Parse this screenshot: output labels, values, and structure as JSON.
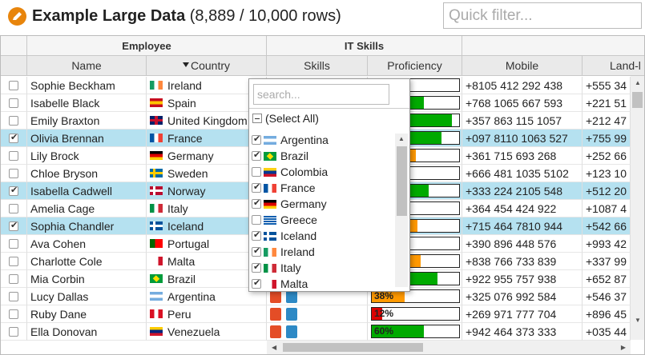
{
  "title": {
    "main": "Example Large Data",
    "count": "(8,889 / 10,000 rows)"
  },
  "quick_filter": {
    "placeholder": "Quick filter..."
  },
  "headers": {
    "groups": {
      "employee": "Employee",
      "it_skills": "IT Skills"
    },
    "columns": {
      "name": "Name",
      "country": "Country",
      "skills": "Skills",
      "proficiency": "Proficiency",
      "mobile": "Mobile",
      "landline": "Land-l"
    }
  },
  "rows": [
    {
      "name": "Sophie Beckham",
      "country": "Ireland",
      "flag": "ireland",
      "checked": false,
      "prof": 20,
      "prof_color": "#dd0000",
      "prof_text": "",
      "mobile": "+8105 412 292 438",
      "land": "+555 34"
    },
    {
      "name": "Isabelle Black",
      "country": "Spain",
      "flag": "spain",
      "checked": false,
      "prof": 60,
      "prof_color": "#00aa00",
      "prof_text": "",
      "mobile": "+768 1065 667 593",
      "land": "+221 51"
    },
    {
      "name": "Emily Braxton",
      "country": "United Kingdom",
      "flag": "uk",
      "checked": false,
      "prof": 92,
      "prof_color": "#00aa00",
      "prof_text": "",
      "mobile": "+357 863 115 1057",
      "land": "+212 47"
    },
    {
      "name": "Olivia Brennan",
      "country": "France",
      "flag": "france",
      "checked": true,
      "prof": 80,
      "prof_color": "#00aa00",
      "prof_text": "",
      "mobile": "+097 8110 1063 527",
      "land": "+755 99"
    },
    {
      "name": "Lily Brock",
      "country": "Germany",
      "flag": "germany",
      "checked": false,
      "prof": 50,
      "prof_color": "#ff9900",
      "prof_text": "",
      "mobile": "+361 715 693 268",
      "land": "+252 66"
    },
    {
      "name": "Chloe Bryson",
      "country": "Sweden",
      "flag": "sweden",
      "checked": false,
      "prof": 0,
      "prof_color": "#00aa00",
      "prof_text": "",
      "mobile": "+666 481 1035 5102",
      "land": "+123 10"
    },
    {
      "name": "Isabella Cadwell",
      "country": "Norway",
      "flag": "norway",
      "checked": true,
      "prof": 65,
      "prof_color": "#00aa00",
      "prof_text": "",
      "mobile": "+333 224 2105 548",
      "land": "+512 20"
    },
    {
      "name": "Amelia Cage",
      "country": "Italy",
      "flag": "italy",
      "checked": false,
      "prof": 0,
      "prof_color": "#00aa00",
      "prof_text": "",
      "mobile": "+364 454 424 922",
      "land": "+1087 4"
    },
    {
      "name": "Sophia Chandler",
      "country": "Iceland",
      "flag": "iceland",
      "checked": true,
      "prof": 52,
      "prof_color": "#ff9900",
      "prof_text": "",
      "mobile": "+715 464 7810 944",
      "land": "+542 66"
    },
    {
      "name": "Ava Cohen",
      "country": "Portugal",
      "flag": "portugal",
      "checked": false,
      "prof": 0,
      "prof_color": "#00aa00",
      "prof_text": "",
      "mobile": "+390 896 448 576",
      "land": "+993 42"
    },
    {
      "name": "Charlotte Cole",
      "country": "Malta",
      "flag": "malta",
      "checked": false,
      "prof": 56,
      "prof_color": "#ff9900",
      "prof_text": "",
      "mobile": "+838 766 733 839",
      "land": "+337 99"
    },
    {
      "name": "Mia Corbin",
      "country": "Brazil",
      "flag": "brazil",
      "checked": false,
      "prof": 75,
      "prof_color": "#00aa00",
      "prof_text": "",
      "mobile": "+922 955 757 938",
      "land": "+652 87"
    },
    {
      "name": "Lucy Dallas",
      "country": "Argentina",
      "flag": "argentina",
      "checked": false,
      "prof": 38,
      "prof_color": "#ff9900",
      "prof_text": "38%",
      "mobile": "+325 076 992 584",
      "land": "+546 37"
    },
    {
      "name": "Ruby Dane",
      "country": "Peru",
      "flag": "peru",
      "checked": false,
      "prof": 12,
      "prof_color": "#dd0000",
      "prof_text": "12%",
      "mobile": "+269 971 777 704",
      "land": "+896 45"
    },
    {
      "name": "Ella Donovan",
      "country": "Venezuela",
      "flag": "venezuela",
      "checked": false,
      "prof": 60,
      "prof_color": "#00aa00",
      "prof_text": "60%",
      "mobile": "+942 464 373 333",
      "land": "+035 44"
    }
  ],
  "filter_popup": {
    "search_placeholder": "search...",
    "select_all": "(Select All)",
    "items": [
      {
        "label": "Argentina",
        "flag": "argentina",
        "checked": true
      },
      {
        "label": "Brazil",
        "flag": "brazil",
        "checked": true
      },
      {
        "label": "Colombia",
        "flag": "colombia",
        "checked": false
      },
      {
        "label": "France",
        "flag": "france",
        "checked": true
      },
      {
        "label": "Germany",
        "flag": "germany",
        "checked": true
      },
      {
        "label": "Greece",
        "flag": "greece",
        "checked": false
      },
      {
        "label": "Iceland",
        "flag": "iceland",
        "checked": true
      },
      {
        "label": "Ireland",
        "flag": "ireland",
        "checked": true
      },
      {
        "label": "Italy",
        "flag": "italy",
        "checked": true
      },
      {
        "label": "Malta",
        "flag": "malta",
        "checked": true
      }
    ]
  },
  "flag_colors": {
    "ireland": [
      "#169b62",
      "#ffffff",
      "#ff883e"
    ],
    "spain": [
      "#c60b1e",
      "#ffc400",
      "#c60b1e"
    ],
    "uk": [
      "#012169",
      "#ffffff",
      "#c8102e"
    ],
    "france": [
      "#0055a4",
      "#ffffff",
      "#ef4135"
    ],
    "germany": [
      "#000000",
      "#dd0000",
      "#ffce00"
    ],
    "sweden": [
      "#006aa7",
      "#fecc00",
      "#006aa7"
    ],
    "norway": [
      "#ba0c2f",
      "#ffffff",
      "#00205b"
    ],
    "italy": [
      "#009246",
      "#ffffff",
      "#ce2b37"
    ],
    "iceland": [
      "#02529c",
      "#ffffff",
      "#dc1e35"
    ],
    "portugal": [
      "#006600",
      "#ff0000",
      "#ff0000"
    ],
    "malta": [
      "#ffffff",
      "#ffffff",
      "#cf142b"
    ],
    "brazil": [
      "#009c3b",
      "#ffdf00",
      "#009c3b"
    ],
    "argentina": [
      "#74acdf",
      "#ffffff",
      "#74acdf"
    ],
    "peru": [
      "#d91023",
      "#ffffff",
      "#d91023"
    ],
    "venezuela": [
      "#ffcc00",
      "#00247d",
      "#cf142b"
    ],
    "colombia": [
      "#fcd116",
      "#003893",
      "#ce1126"
    ],
    "greece": [
      "#0d5eaf",
      "#ffffff",
      "#0d5eaf"
    ]
  }
}
